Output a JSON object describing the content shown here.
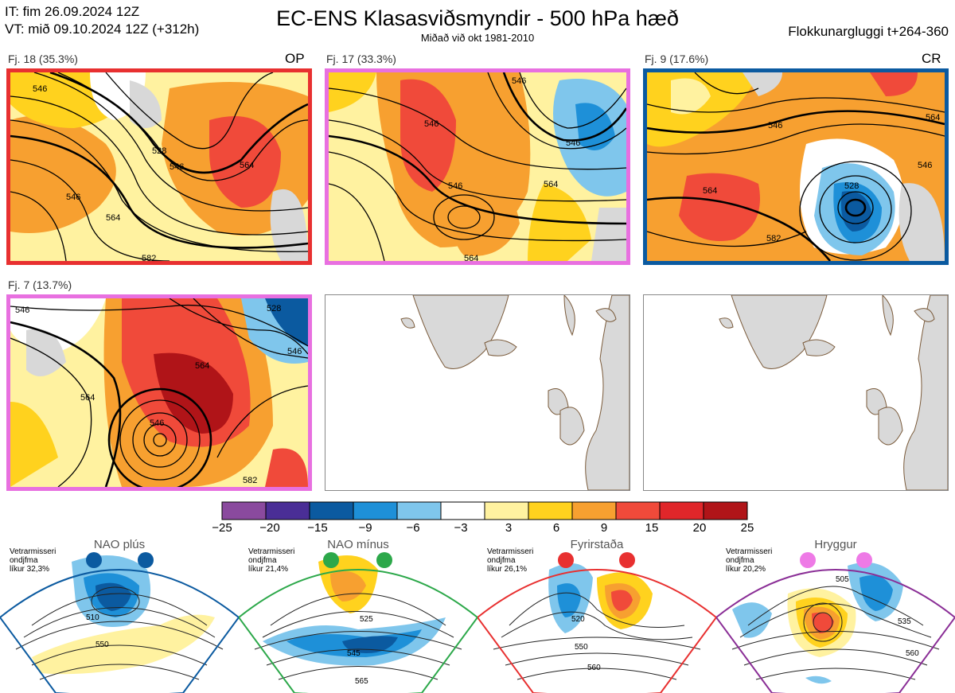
{
  "header": {
    "init_time": "IT: fim 26.09.2024 12Z",
    "valid_time": "VT: mið 09.10.2024 12Z  (+312h)",
    "title": "EC-ENS Klasasviðsmyndir - 500 hPa hæð",
    "subtitle": "Miðað við okt 1981-2010",
    "window": "Flokkunargluggi t+264-360"
  },
  "panels": [
    {
      "label": "Fj. 18 (35.3%)",
      "tag": "OP",
      "border": "#e83030",
      "contour_labels": [
        "546",
        "528",
        "546",
        "564",
        "546",
        "564",
        "582"
      ]
    },
    {
      "label": "Fj. 17 (33.3%)",
      "tag": "",
      "border": "#e870e0",
      "contour_labels": [
        "546",
        "546",
        "546",
        "546",
        "564",
        "564"
      ]
    },
    {
      "label": "Fj. 9 (17.6%)",
      "tag": "CR",
      "border": "#0b5aa0",
      "contour_labels": [
        "546",
        "564",
        "546",
        "528",
        "564",
        "582"
      ]
    },
    {
      "label": "Fj. 7 (13.7%)",
      "tag": "",
      "border": "#e870e0",
      "contour_labels": [
        "546",
        "528",
        "564",
        "546",
        "564",
        "546",
        "582"
      ]
    }
  ],
  "colorbar": {
    "ticks": [
      "−25",
      "−20",
      "−15",
      "−9",
      "−6",
      "−3",
      "3",
      "6",
      "9",
      "15",
      "20",
      "25"
    ],
    "colors": [
      "#8a4a9e",
      "#4a2e96",
      "#0b5aa0",
      "#1e90d8",
      "#7fc6ec",
      "#ffffff",
      "#fff2a0",
      "#ffd21e",
      "#f7a030",
      "#f04a3a",
      "#e0262a",
      "#b01418"
    ]
  },
  "regimes": [
    {
      "name": "NAO plús",
      "note": "Vetrarmisseri\nondjfma\nlíkur 32,3%",
      "border": "#0b5aa0",
      "dot": "#0b5aa0",
      "contour_labels": [
        "510",
        "550"
      ]
    },
    {
      "name": "NAO mínus",
      "note": "Vetrarmisseri\nondjfma\nlíkur 21,4%",
      "border": "#2ca84a",
      "dot": "#2ca84a",
      "contour_labels": [
        "525",
        "545",
        "565"
      ]
    },
    {
      "name": "Fyrirstaða",
      "note": "Vetrarmisseri\nondjfma\nlíkur 26,1%",
      "border": "#e83030",
      "dot": "#e83030",
      "contour_labels": [
        "520",
        "550",
        "560"
      ]
    },
    {
      "name": "Hryggur",
      "note": "Vetrarmisseri\nondjfma\nlíkur 20,2%",
      "border": "#8a2e96",
      "dot": "#ee7ae6",
      "contour_labels": [
        "505",
        "535",
        "560"
      ]
    }
  ]
}
